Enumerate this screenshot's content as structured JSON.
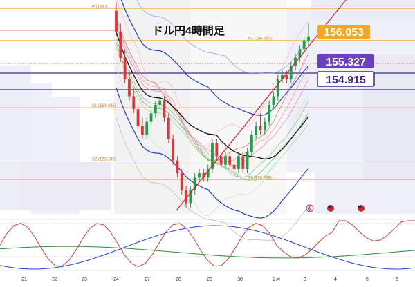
{
  "chart_data": {
    "type": "candlestick",
    "title": "ドル円4時間足",
    "x_tick_labels": [
      "21",
      "22",
      "23",
      "24",
      "27",
      "28",
      "29",
      "30",
      "2月",
      "3",
      "4",
      "5",
      "6"
    ],
    "price_tags": [
      {
        "value": "156.053",
        "bg": "#f5a623",
        "fg": "#ffffff",
        "border": "#f5a623"
      },
      {
        "value": "155.327",
        "bg": "#6a3fc4",
        "fg": "#ffffff",
        "border": "#6a3fc4"
      },
      {
        "value": "154.915",
        "bg": "#ffffff",
        "fg": "#3b2a8c",
        "border": "#3b2a8c"
      }
    ],
    "levels": [
      {
        "label": "P (156.8...",
        "value": 156.8
      },
      {
        "label": "R1 (156.057)",
        "value": 156.057
      },
      {
        "label": "S1 (154.485)",
        "value": 154.485
      },
      {
        "label": "S2 (153.235)",
        "value": 153.235
      },
      {
        "label": "S1 (152.799)",
        "value": 152.799
      }
    ],
    "candles_ohlc": [
      [
        156.75,
        156.95,
        156.15,
        156.25
      ],
      [
        156.25,
        156.45,
        155.55,
        155.65
      ],
      [
        155.65,
        155.85,
        155.05,
        155.15
      ],
      [
        155.15,
        155.35,
        154.65,
        154.75
      ],
      [
        154.75,
        154.95,
        154.35,
        154.45
      ],
      [
        154.45,
        154.55,
        153.95,
        154.05
      ],
      [
        154.05,
        154.25,
        153.75,
        153.85
      ],
      [
        153.85,
        154.25,
        153.75,
        154.15
      ],
      [
        154.15,
        154.45,
        154.05,
        154.35
      ],
      [
        154.35,
        154.65,
        154.25,
        154.55
      ],
      [
        154.55,
        154.75,
        154.45,
        154.65
      ],
      [
        154.65,
        154.75,
        154.15,
        154.25
      ],
      [
        154.25,
        154.35,
        153.65,
        153.75
      ],
      [
        153.75,
        153.85,
        153.15,
        153.25
      ],
      [
        153.25,
        153.35,
        152.85,
        152.95
      ],
      [
        152.95,
        153.05,
        152.45,
        152.55
      ],
      [
        152.55,
        152.65,
        152.15,
        152.25
      ],
      [
        152.25,
        152.65,
        152.15,
        152.55
      ],
      [
        152.55,
        152.95,
        152.45,
        152.85
      ],
      [
        152.85,
        153.05,
        152.75,
        152.95
      ],
      [
        152.95,
        153.05,
        152.75,
        152.85
      ],
      [
        152.85,
        153.15,
        152.75,
        153.05
      ],
      [
        153.05,
        153.75,
        152.95,
        153.65
      ],
      [
        153.65,
        153.75,
        153.25,
        153.35
      ],
      [
        153.35,
        153.45,
        153.05,
        153.15
      ],
      [
        153.15,
        153.45,
        153.05,
        153.35
      ],
      [
        153.35,
        153.45,
        153.05,
        153.15
      ],
      [
        153.15,
        153.25,
        152.95,
        153.05
      ],
      [
        153.05,
        153.45,
        152.95,
        153.35
      ],
      [
        153.35,
        153.45,
        152.95,
        153.05
      ],
      [
        153.05,
        153.55,
        152.95,
        153.45
      ],
      [
        153.45,
        153.95,
        153.35,
        153.85
      ],
      [
        153.85,
        154.15,
        153.75,
        154.05
      ],
      [
        154.05,
        154.35,
        153.85,
        153.95
      ],
      [
        153.95,
        154.25,
        153.85,
        154.15
      ],
      [
        154.15,
        154.65,
        154.05,
        154.55
      ],
      [
        154.55,
        154.85,
        154.45,
        154.75
      ],
      [
        154.75,
        155.25,
        154.65,
        155.15
      ],
      [
        155.15,
        155.35,
        155.05,
        155.25
      ],
      [
        155.25,
        155.35,
        155.05,
        155.15
      ],
      [
        155.15,
        155.55,
        155.05,
        155.45
      ],
      [
        155.45,
        155.75,
        155.35,
        155.65
      ],
      [
        155.65,
        155.95,
        155.55,
        155.85
      ],
      [
        155.85,
        156.15,
        155.75,
        156.05
      ],
      [
        156.05,
        156.45,
        155.95,
        156.15
      ]
    ],
    "y_range": [
      152.0,
      157.0
    ],
    "colors": {
      "up": "#1d9e47",
      "down": "#e0343b",
      "envelope_gray": "#bdbdbd"
    }
  }
}
